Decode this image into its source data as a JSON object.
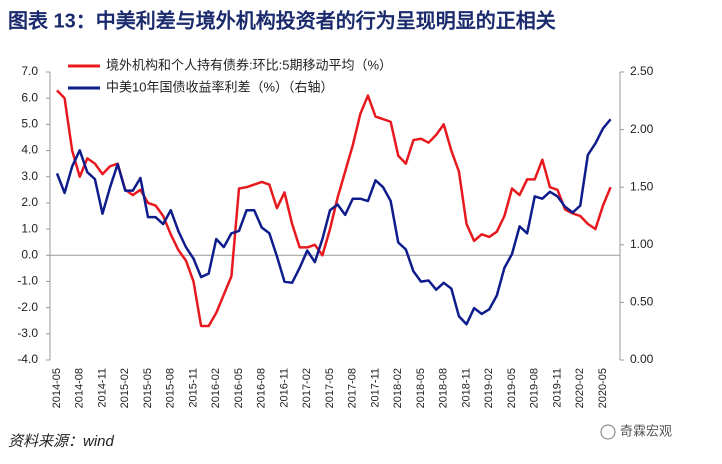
{
  "chart_data": {
    "type": "line",
    "title": "图表 13：中美利差与境外机构投资者的行为呈现明显的正相关",
    "source": "资料来源：wind",
    "watermark": "奇霖宏观",
    "categories": [
      "2014-05",
      null,
      null,
      "2014-08",
      null,
      null,
      "2014-11",
      null,
      null,
      "2015-02",
      null,
      null,
      "2015-05",
      null,
      null,
      "2015-08",
      null,
      null,
      "2015-11",
      null,
      null,
      "2016-02",
      null,
      null,
      "2016-05",
      null,
      null,
      "2016-08",
      null,
      null,
      "2016-11",
      null,
      null,
      "2017-02",
      null,
      null,
      "2017-05",
      null,
      null,
      "2017-08",
      null,
      null,
      "2017-11",
      null,
      null,
      "2018-02",
      null,
      null,
      "2018-05",
      null,
      null,
      "2018-08",
      null,
      null,
      "2018-11",
      null,
      null,
      "2019-02",
      null,
      null,
      "2019-05",
      null,
      null,
      "2019-08",
      null,
      null,
      "2019-11",
      null,
      null,
      "2020-02",
      null,
      null,
      "2020-05",
      null
    ],
    "series": [
      {
        "name": "境外机构和个人持有债券:环比:5期移动平均（%）",
        "color": "#e8191e",
        "axis": "y",
        "values": [
          6.3,
          6.0,
          4.0,
          3.0,
          3.7,
          3.5,
          3.1,
          3.4,
          3.5,
          2.5,
          2.3,
          2.5,
          2.0,
          1.9,
          1.5,
          0.8,
          0.2,
          -0.2,
          -1.0,
          -2.7,
          -2.7,
          -2.2,
          -1.5,
          -0.8,
          2.55,
          2.6,
          2.7,
          2.8,
          2.7,
          1.8,
          2.4,
          1.2,
          0.3,
          0.3,
          0.4,
          0.0,
          1.0,
          2.2,
          3.2,
          4.2,
          5.4,
          6.1,
          5.3,
          5.2,
          5.1,
          3.8,
          3.5,
          4.4,
          4.45,
          4.3,
          4.6,
          5.0,
          4.0,
          3.2,
          1.2,
          0.55,
          0.8,
          0.7,
          0.9,
          1.5,
          2.55,
          2.3,
          2.9,
          2.9,
          3.65,
          2.6,
          2.5,
          1.75,
          1.6,
          1.5,
          1.2,
          1.0,
          1.9,
          2.6
        ]
      },
      {
        "name": "中美10年国债收益率利差（%）（右轴）",
        "color": "#0e1c8c",
        "axis": "y2",
        "values": [
          1.62,
          1.45,
          1.68,
          1.82,
          1.63,
          1.57,
          1.27,
          1.5,
          1.7,
          1.47,
          1.47,
          1.58,
          1.24,
          1.24,
          1.18,
          1.3,
          1.12,
          0.98,
          0.88,
          0.72,
          0.75,
          1.05,
          0.98,
          1.1,
          1.12,
          1.3,
          1.3,
          1.15,
          1.1,
          0.9,
          0.68,
          0.67,
          0.8,
          0.95,
          0.85,
          1.05,
          1.3,
          1.35,
          1.26,
          1.4,
          1.4,
          1.38,
          1.56,
          1.5,
          1.38,
          1.02,
          0.96,
          0.77,
          0.68,
          0.69,
          0.61,
          0.67,
          0.62,
          0.38,
          0.31,
          0.45,
          0.4,
          0.44,
          0.56,
          0.8,
          0.92,
          1.16,
          1.1,
          1.42,
          1.4,
          1.46,
          1.42,
          1.33,
          1.28,
          1.34,
          1.78,
          1.88,
          2.01,
          2.09
        ]
      }
    ],
    "ylim": [
      -4,
      7
    ],
    "yticks": [
      {
        "value": 7,
        "label": "7.0"
      },
      {
        "value": 6,
        "label": "6.0"
      },
      {
        "value": 5,
        "label": "5.0"
      },
      {
        "value": 4,
        "label": "4.0"
      },
      {
        "value": 3,
        "label": "3.0"
      },
      {
        "value": 2,
        "label": "2.0"
      },
      {
        "value": 1,
        "label": "1.0"
      },
      {
        "value": 0,
        "label": "0.0"
      },
      {
        "value": -1,
        "label": "-1.0"
      },
      {
        "value": -2,
        "label": "-2.0"
      },
      {
        "value": -3,
        "label": "-3.0"
      },
      {
        "value": -4,
        "label": "-4.0"
      }
    ],
    "y2lim": [
      0,
      2.5
    ],
    "y2ticks": [
      {
        "value": 2.5,
        "label": "2.50"
      },
      {
        "value": 2,
        "label": "2.00"
      },
      {
        "value": 1.5,
        "label": "1.50"
      },
      {
        "value": 1,
        "label": "1.00"
      },
      {
        "value": 0.5,
        "label": "0.50"
      },
      {
        "value": 0,
        "label": "0.00"
      }
    ],
    "grid": false
  }
}
